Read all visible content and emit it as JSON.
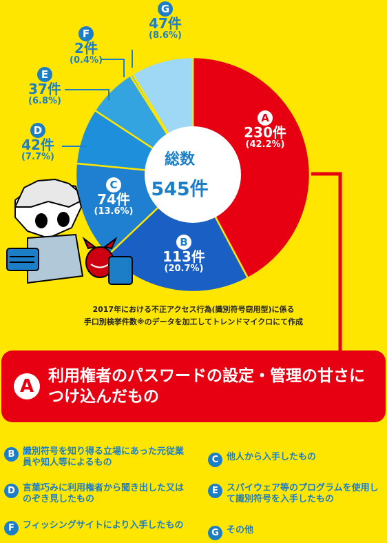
{
  "chart_data": {
    "type": "pie",
    "total_label": "総数",
    "total_value": "545件",
    "slices": [
      {
        "key": "A",
        "count": 230,
        "count_label": "230件",
        "pct_label": "(42.2%)",
        "color": "#e60012"
      },
      {
        "key": "B",
        "count": 113,
        "count_label": "113件",
        "pct_label": "(20.7%)",
        "color": "#1a5fc4"
      },
      {
        "key": "C",
        "count": 74,
        "count_label": "74件",
        "pct_label": "(13.6%)",
        "color": "#1f7fd0"
      },
      {
        "key": "D",
        "count": 42,
        "count_label": "42件",
        "pct_label": "(7.7%)",
        "color": "#1e8fda"
      },
      {
        "key": "E",
        "count": 37,
        "count_label": "37件",
        "pct_label": "(6.8%)",
        "color": "#34a4e0"
      },
      {
        "key": "F",
        "count": 2,
        "count_label": "2件",
        "pct_label": "(0.4%)",
        "color": "#5bb6ea"
      },
      {
        "key": "G",
        "count": 47,
        "count_label": "47件",
        "pct_label": "(8.6%)",
        "color": "#9fd8f5"
      }
    ]
  },
  "source_note": {
    "line1": "2017年における不正アクセス行為(識別符号窃用型)に係る",
    "line2": "手口別検挙件数※のデータを加工してトレンドマイクロにて作成"
  },
  "highlight": {
    "key": "A",
    "text": "利用権者のパスワードの設定・管理の甘さにつけ込んだもの"
  },
  "legend": [
    {
      "key": "B",
      "text": "識別符号を知り得る立場にあった元従業員や知人等によるもの"
    },
    {
      "key": "C",
      "text": "他人から入手したもの"
    },
    {
      "key": "D",
      "text": "言葉巧みに利用権者から聞き出した又はのぞき見したもの"
    },
    {
      "key": "E",
      "text": "スパイウェア等のプログラムを使用して識別符号を入手したもの"
    },
    {
      "key": "F",
      "text": "フィッシングサイトにより入手したもの"
    },
    {
      "key": "G",
      "text": "その他"
    }
  ]
}
